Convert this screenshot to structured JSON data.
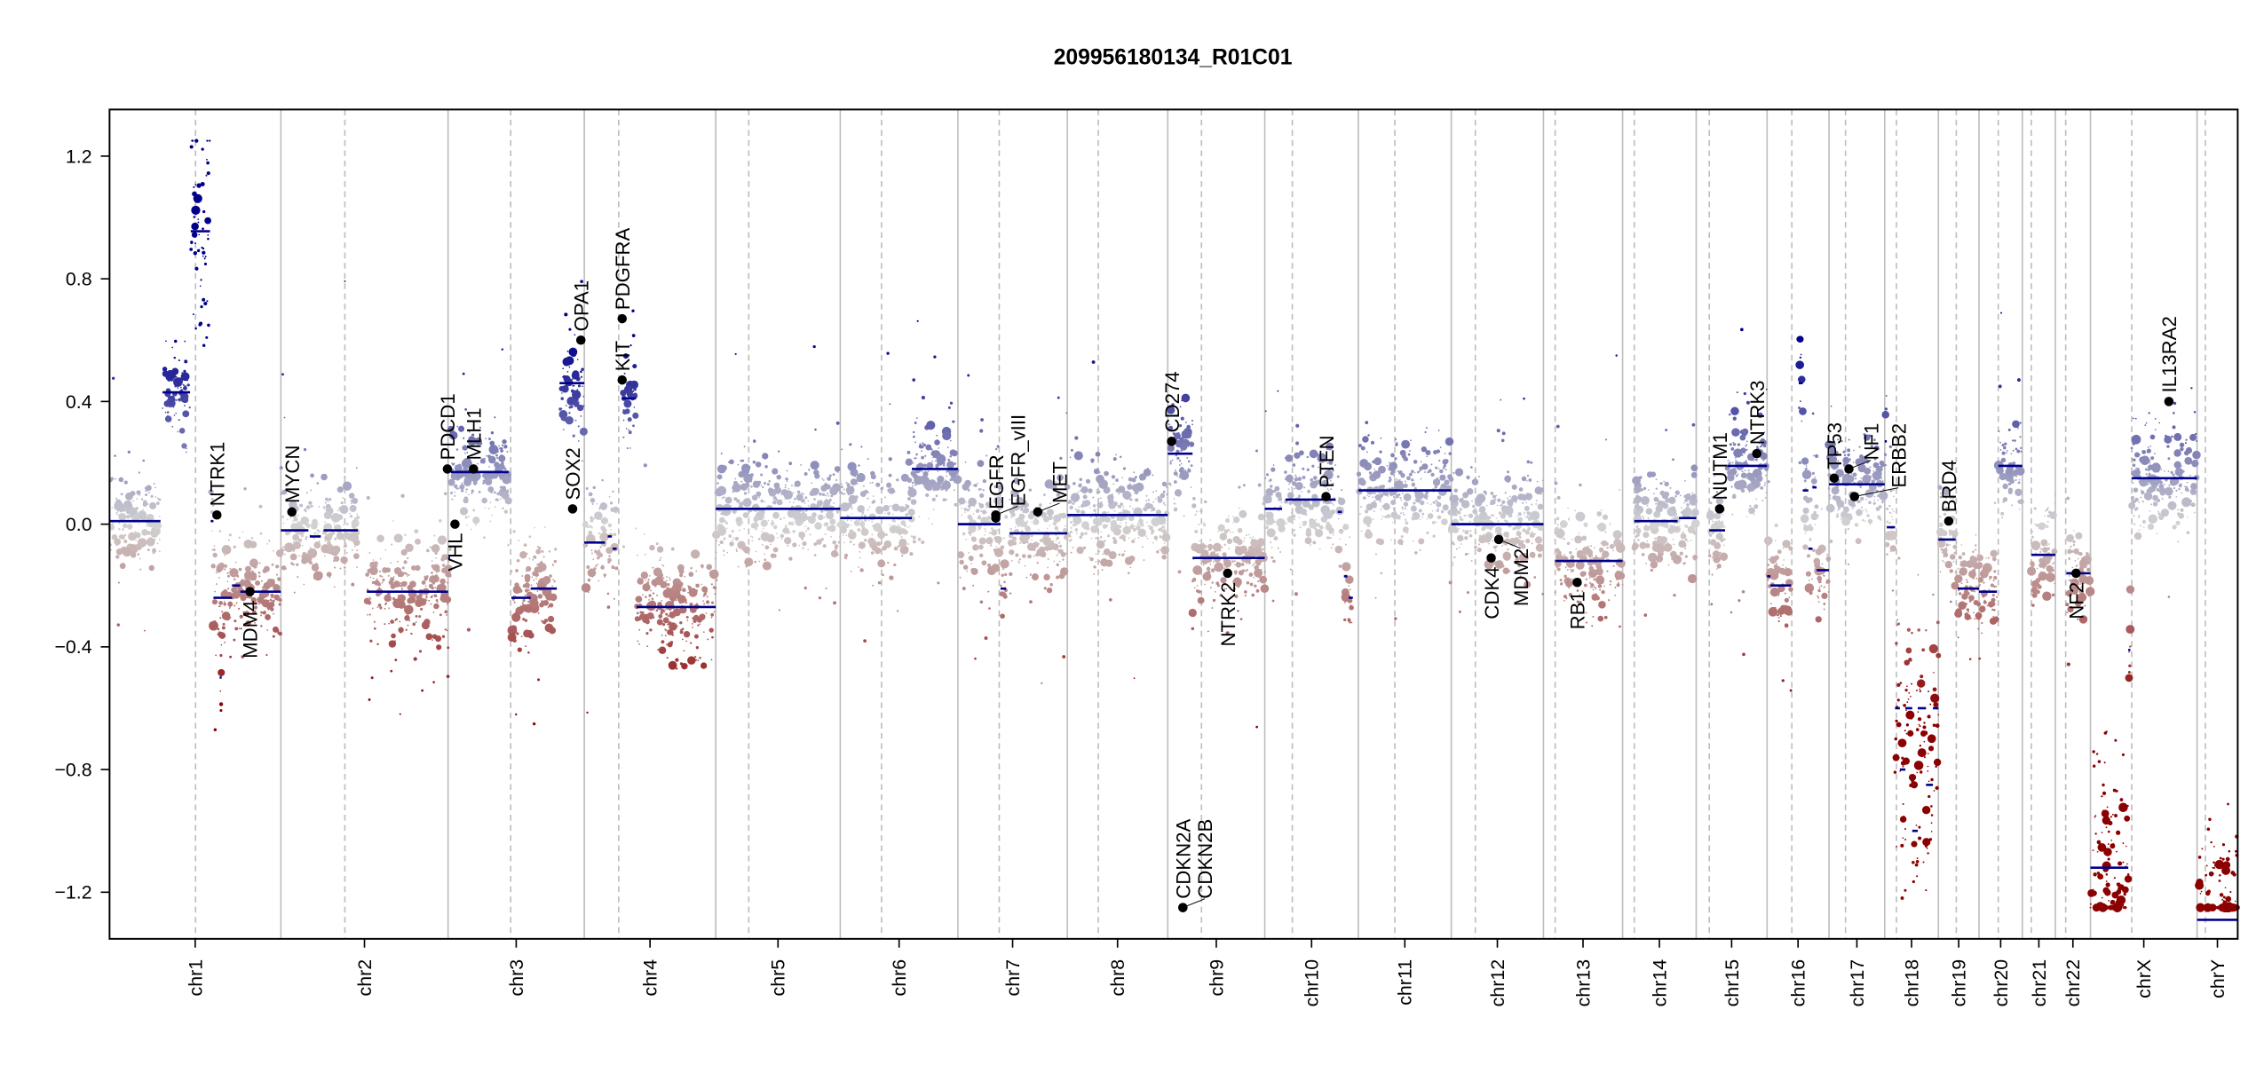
{
  "chart_data": {
    "type": "scatter",
    "title": "209956180134_R01C01",
    "xlabel": "",
    "ylabel": "",
    "ylim": [
      -1.352,
      1.352
    ],
    "yticks": [
      -1.2,
      -0.8,
      -0.4,
      0.0,
      0.4,
      0.8,
      1.2
    ],
    "ytick_labels": [
      "−1.2",
      "−0.8",
      "−0.4",
      "0.0",
      "0.4",
      "0.8",
      "1.2"
    ],
    "grid": false,
    "colors": {
      "segment": "#00008b",
      "gain": "#00008b",
      "neutral": "#d3d3d3",
      "loss": "#8b0000",
      "gene_point": "#000000",
      "chrom_line": "#bebebe"
    },
    "chromosomes": [
      {
        "name": "chr1",
        "length_mb": 249,
        "centromere_mb": 125
      },
      {
        "name": "chr2",
        "length_mb": 243,
        "centromere_mb": 93
      },
      {
        "name": "chr3",
        "length_mb": 198,
        "centromere_mb": 91
      },
      {
        "name": "chr4",
        "length_mb": 191,
        "centromere_mb": 50
      },
      {
        "name": "chr5",
        "length_mb": 181,
        "centromere_mb": 48
      },
      {
        "name": "chr6",
        "length_mb": 171,
        "centromere_mb": 60
      },
      {
        "name": "chr7",
        "length_mb": 159,
        "centromere_mb": 60
      },
      {
        "name": "chr8",
        "length_mb": 146,
        "centromere_mb": 45
      },
      {
        "name": "chr9",
        "length_mb": 141,
        "centromere_mb": 49
      },
      {
        "name": "chr10",
        "length_mb": 136,
        "centromere_mb": 40
      },
      {
        "name": "chr11",
        "length_mb": 135,
        "centromere_mb": 53
      },
      {
        "name": "chr12",
        "length_mb": 134,
        "centromere_mb": 35
      },
      {
        "name": "chr13",
        "length_mb": 115,
        "centromere_mb": 17
      },
      {
        "name": "chr14",
        "length_mb": 107,
        "centromere_mb": 17
      },
      {
        "name": "chr15",
        "length_mb": 103,
        "centromere_mb": 19
      },
      {
        "name": "chr16",
        "length_mb": 90,
        "centromere_mb": 36
      },
      {
        "name": "chr17",
        "length_mb": 81,
        "centromere_mb": 24
      },
      {
        "name": "chr18",
        "length_mb": 78,
        "centromere_mb": 17
      },
      {
        "name": "chr19",
        "length_mb": 59,
        "centromere_mb": 26
      },
      {
        "name": "chr20",
        "length_mb": 63,
        "centromere_mb": 28
      },
      {
        "name": "chr21",
        "length_mb": 48,
        "centromere_mb": 13
      },
      {
        "name": "chr22",
        "length_mb": 51,
        "centromere_mb": 15
      },
      {
        "name": "chrX",
        "length_mb": 155,
        "centromere_mb": 60
      },
      {
        "name": "chrY",
        "length_mb": 59,
        "centromere_mb": 12
      }
    ],
    "segments": [
      [
        "chr1",
        0,
        74,
        0.01
      ],
      [
        "chr1",
        77,
        117,
        0.43
      ],
      [
        "chr1",
        118,
        146,
        0.955
      ],
      [
        "chr1",
        147,
        151,
        0.01
      ],
      [
        "chr1",
        151,
        178,
        -0.24
      ],
      [
        "chr1",
        160,
        163,
        -0.5
      ],
      [
        "chr1",
        178,
        190,
        -0.2
      ],
      [
        "chr1",
        190,
        249,
        -0.22
      ],
      [
        "chr2",
        0,
        40,
        -0.02
      ],
      [
        "chr2",
        42,
        58,
        -0.04
      ],
      [
        "chr2",
        62,
        112,
        -0.02
      ],
      [
        "chr2",
        125,
        243,
        -0.22
      ],
      [
        "chr3",
        0,
        3,
        -0.11
      ],
      [
        "chr3",
        4,
        88,
        0.17
      ],
      [
        "chr3",
        92,
        120,
        -0.24
      ],
      [
        "chr3",
        120,
        158,
        -0.21
      ],
      [
        "chr3",
        162,
        198,
        0.46
      ],
      [
        "chr4",
        0,
        30,
        -0.06
      ],
      [
        "chr4",
        34,
        40,
        -0.04
      ],
      [
        "chr4",
        41,
        47,
        -0.08
      ],
      [
        "chr4",
        55,
        75,
        0.41
      ],
      [
        "chr4",
        76,
        191,
        -0.27
      ],
      [
        "chr5",
        0,
        181,
        0.05
      ],
      [
        "chr6",
        0,
        104,
        0.02
      ],
      [
        "chr6",
        104,
        171,
        0.18
      ],
      [
        "chr7",
        0,
        62,
        0.0
      ],
      [
        "chr7",
        62,
        70,
        -0.21
      ],
      [
        "chr7",
        75,
        159,
        -0.03
      ],
      [
        "chr8",
        0,
        146,
        0.03
      ],
      [
        "chr9",
        0,
        36,
        0.23
      ],
      [
        "chr9",
        36,
        141,
        -0.11
      ],
      [
        "chr10",
        0,
        25,
        0.05
      ],
      [
        "chr10",
        30,
        103,
        0.08
      ],
      [
        "chr10",
        106,
        112,
        0.04
      ],
      [
        "chr10",
        115,
        120,
        -0.17
      ],
      [
        "chr10",
        122,
        128,
        -0.24
      ],
      [
        "chr11",
        0,
        135,
        0.11
      ],
      [
        "chr12",
        0,
        134,
        0.0
      ],
      [
        "chr13",
        17,
        115,
        -0.12
      ],
      [
        "chr14",
        17,
        80,
        0.01
      ],
      [
        "chr14",
        82,
        107,
        0.02
      ],
      [
        "chr15",
        19,
        42,
        -0.02
      ],
      [
        "chr15",
        45,
        103,
        0.19
      ],
      [
        "chr16",
        0,
        5,
        -0.17
      ],
      [
        "chr16",
        5,
        35,
        -0.2
      ],
      [
        "chr16",
        46,
        52,
        0.46
      ],
      [
        "chr16",
        52,
        60,
        0.11
      ],
      [
        "chr16",
        60,
        66,
        -0.08
      ],
      [
        "chr16",
        66,
        72,
        0.12
      ],
      [
        "chr16",
        72,
        90,
        -0.15
      ],
      [
        "chr17",
        0,
        81,
        0.13
      ],
      [
        "chr18",
        0,
        3,
        0.27
      ],
      [
        "chr18",
        3,
        15,
        -0.01
      ],
      [
        "chr18",
        15,
        22,
        -0.6
      ],
      [
        "chr18",
        22,
        30,
        -0.8
      ],
      [
        "chr18",
        30,
        40,
        -0.6
      ],
      [
        "chr18",
        40,
        48,
        -1.0
      ],
      [
        "chr18",
        48,
        60,
        -0.6
      ],
      [
        "chr18",
        60,
        70,
        -0.85
      ],
      [
        "chr18",
        70,
        78,
        -0.6
      ],
      [
        "chr19",
        0,
        25,
        -0.05
      ],
      [
        "chr19",
        28,
        59,
        -0.21
      ],
      [
        "chr20",
        0,
        26,
        -0.22
      ],
      [
        "chr20",
        28,
        63,
        0.19
      ],
      [
        "chr21",
        13,
        48,
        -0.1
      ],
      [
        "chr22",
        16,
        51,
        -0.16
      ],
      [
        "chrX",
        0,
        55,
        -1.12
      ],
      [
        "chrX",
        55,
        58,
        -0.41
      ],
      [
        "chrX",
        60,
        155,
        0.15
      ],
      [
        "chrY",
        0,
        59,
        -1.29
      ]
    ],
    "genes": [
      {
        "name": "NTRK1",
        "chrom": "chr1",
        "pos_mb": 156,
        "value": 0.03,
        "label": "up"
      },
      {
        "name": "MDM4",
        "chrom": "chr1",
        "pos_mb": 204,
        "value": -0.22,
        "label": "down"
      },
      {
        "name": "MYCN",
        "chrom": "chr2",
        "pos_mb": 16,
        "value": 0.04,
        "label": "up"
      },
      {
        "name": "PDCD1",
        "chrom": "chr2",
        "pos_mb": 242,
        "value": 0.18,
        "label": "up"
      },
      {
        "name": "VHL",
        "chrom": "chr3",
        "pos_mb": 10,
        "value": 0.0,
        "label": "down"
      },
      {
        "name": "MLH1",
        "chrom": "chr3",
        "pos_mb": 37,
        "value": 0.18,
        "label": "up"
      },
      {
        "name": "SOX2",
        "chrom": "chr3",
        "pos_mb": 181,
        "value": 0.05,
        "label": "up"
      },
      {
        "name": "OPA1",
        "chrom": "chr3",
        "pos_mb": 193,
        "value": 0.6,
        "label": "up"
      },
      {
        "name": "KIT",
        "chrom": "chr4",
        "pos_mb": 55,
        "value": 0.47,
        "label": "up"
      },
      {
        "name": "PDGFRA",
        "chrom": "chr4",
        "pos_mb": 55,
        "value": 0.67,
        "label": "up"
      },
      {
        "name": "EGFR",
        "chrom": "chr7",
        "pos_mb": 55,
        "value": 0.02,
        "label": "up"
      },
      {
        "name": "EGFR_vIII",
        "chrom": "chr7",
        "pos_mb": 55,
        "value": 0.03,
        "label": "up"
      },
      {
        "name": "MET",
        "chrom": "chr7",
        "pos_mb": 116,
        "value": 0.04,
        "label": "up"
      },
      {
        "name": "CD274",
        "chrom": "chr9",
        "pos_mb": 5.5,
        "value": 0.27,
        "label": "up"
      },
      {
        "name": "CDKN2A",
        "chrom": "chr9",
        "pos_mb": 21.9,
        "value": -1.25,
        "label": "up"
      },
      {
        "name": "CDKN2B",
        "chrom": "chr9",
        "pos_mb": 22.0,
        "value": -1.25,
        "label": "up"
      },
      {
        "name": "NTRK2",
        "chrom": "chr9",
        "pos_mb": 87,
        "value": -0.16,
        "label": "down"
      },
      {
        "name": "PTEN",
        "chrom": "chr10",
        "pos_mb": 89,
        "value": 0.09,
        "label": "up"
      },
      {
        "name": "CDK4",
        "chrom": "chr12",
        "pos_mb": 58,
        "value": -0.11,
        "label": "down"
      },
      {
        "name": "MDM2",
        "chrom": "chr12",
        "pos_mb": 69,
        "value": -0.05,
        "label": "down"
      },
      {
        "name": "RB1",
        "chrom": "chr13",
        "pos_mb": 49,
        "value": -0.19,
        "label": "down"
      },
      {
        "name": "NUTM1",
        "chrom": "chr15",
        "pos_mb": 34,
        "value": 0.05,
        "label": "up"
      },
      {
        "name": "NTRK3",
        "chrom": "chr15",
        "pos_mb": 88,
        "value": 0.23,
        "label": "up"
      },
      {
        "name": "TP53",
        "chrom": "chr17",
        "pos_mb": 7.5,
        "value": 0.15,
        "label": "up"
      },
      {
        "name": "NF1",
        "chrom": "chr17",
        "pos_mb": 29,
        "value": 0.18,
        "label": "up"
      },
      {
        "name": "ERBB2",
        "chrom": "chr17",
        "pos_mb": 37,
        "value": 0.09,
        "label": "up"
      },
      {
        "name": "BRD4",
        "chrom": "chr19",
        "pos_mb": 15,
        "value": 0.01,
        "label": "up"
      },
      {
        "name": "NF2",
        "chrom": "chr22",
        "pos_mb": 30,
        "value": -0.16,
        "label": "down"
      },
      {
        "name": "IL13RA2",
        "chrom": "chrX",
        "pos_mb": 114,
        "value": 0.4,
        "label": "up"
      }
    ]
  }
}
